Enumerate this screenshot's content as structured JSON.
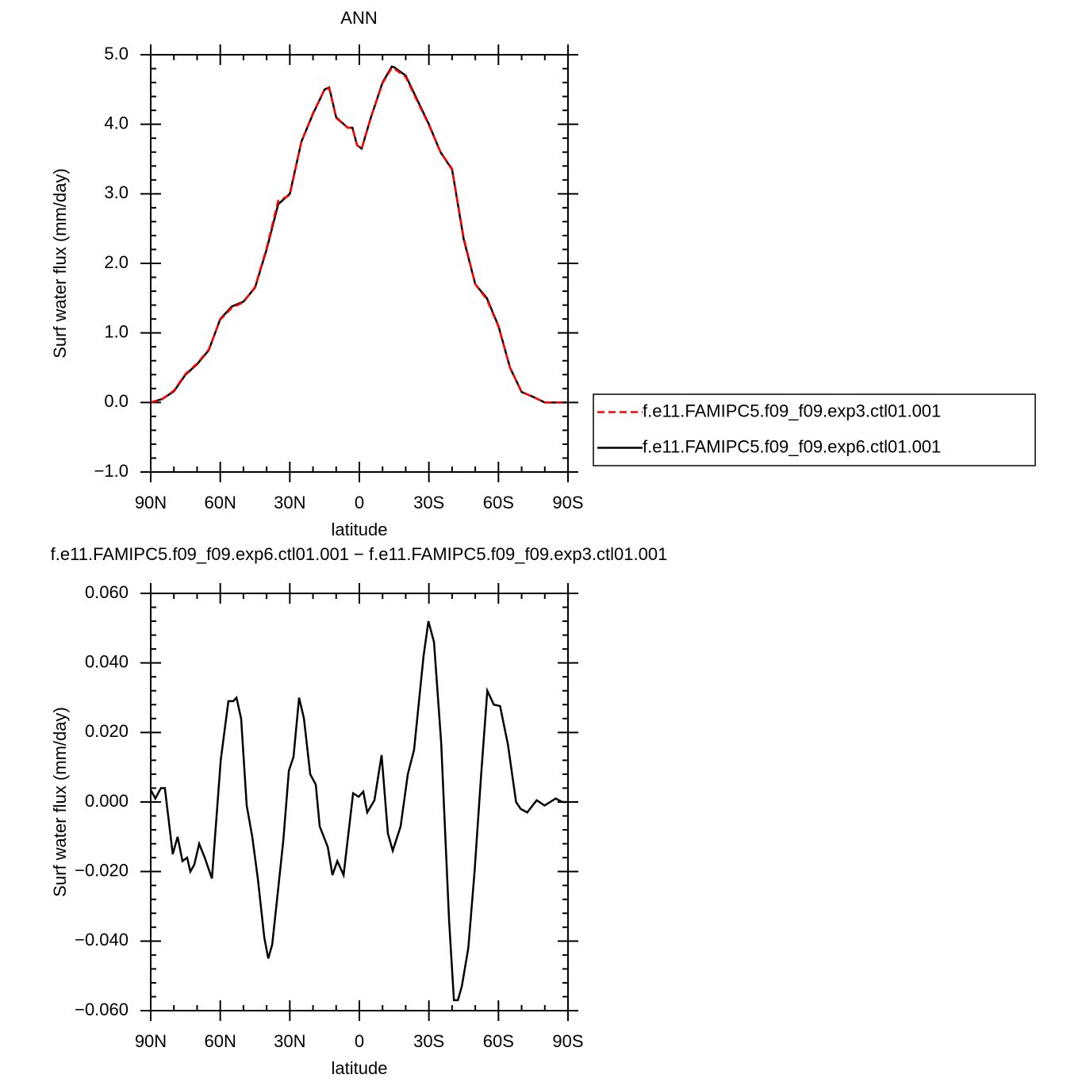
{
  "chart_data": [
    {
      "type": "line",
      "title": "ANN",
      "xlabel": "latitude",
      "ylabel": "Surf water flux (mm/day)",
      "xlim": [
        90,
        -90
      ],
      "ylim": [
        -1,
        5
      ],
      "xticks": [
        {
          "value": 90,
          "label": "90N"
        },
        {
          "value": 60,
          "label": "60N"
        },
        {
          "value": 30,
          "label": "30N"
        },
        0,
        {
          "value": -30,
          "label": "30S"
        },
        {
          "value": -60,
          "label": "60S"
        },
        {
          "value": -90,
          "label": "90S"
        }
      ],
      "yticks": [
        {
          "value": 5,
          "label": "5.0"
        },
        {
          "value": 4,
          "label": "4.0"
        },
        {
          "value": 3,
          "label": "3.0"
        },
        {
          "value": 2,
          "label": "2.0"
        },
        {
          "value": 1,
          "label": "1.0"
        },
        {
          "value": 0,
          "label": "0.0"
        },
        {
          "value": -1,
          "label": "−1.0"
        }
      ],
      "legend": "outside-right",
      "x": [
        90,
        85,
        80,
        75,
        70,
        65,
        60,
        55,
        50,
        45,
        40,
        35,
        30,
        25,
        20,
        15,
        13,
        10,
        5,
        3,
        1,
        -1,
        -5,
        -10,
        -14,
        -15,
        -20,
        -25,
        -30,
        -35,
        -40,
        -45,
        -50,
        -55,
        -60,
        -65,
        -70,
        -75,
        -80,
        -85,
        -90
      ],
      "series": [
        {
          "name": "f.e11.FAMIPC5.f09_f09.exp6.ctl01.001",
          "color": "#000000",
          "linestyle": "solid",
          "values": [
            0.0,
            0.05,
            0.16,
            0.4,
            0.55,
            0.75,
            1.2,
            1.38,
            1.45,
            1.65,
            2.2,
            2.85,
            3.0,
            3.75,
            4.15,
            4.5,
            4.53,
            4.1,
            3.95,
            3.95,
            3.7,
            3.65,
            4.1,
            4.6,
            4.83,
            4.82,
            4.7,
            4.35,
            4.0,
            3.6,
            3.35,
            2.35,
            1.7,
            1.5,
            1.1,
            0.5,
            0.15,
            0.08,
            0.0,
            0.0,
            0.0
          ]
        },
        {
          "name": "f.e11.FAMIPC5.f09_f09.exp3.ctl01.001",
          "color": "#ff0000",
          "linestyle": "dashed",
          "values": [
            0.0,
            0.05,
            0.17,
            0.41,
            0.56,
            0.76,
            1.19,
            1.36,
            1.44,
            1.66,
            2.22,
            2.9,
            2.98,
            3.75,
            4.16,
            4.5,
            4.52,
            4.09,
            3.95,
            3.95,
            3.7,
            3.65,
            4.1,
            4.59,
            4.81,
            4.8,
            4.68,
            4.33,
            3.99,
            3.6,
            3.36,
            2.37,
            1.7,
            1.48,
            1.09,
            0.5,
            0.15,
            0.08,
            0.0,
            0.0,
            0.0
          ]
        }
      ]
    },
    {
      "type": "line",
      "title": "f.e11.FAMIPC5.f09_f09.exp6.ctl01.001 − f.e11.FAMIPC5.f09_f09.exp3.ctl01.001",
      "xlabel": "latitude",
      "ylabel": "Surf water flux (mm/day)",
      "xlim": [
        90,
        -90
      ],
      "ylim": [
        -0.06,
        0.06
      ],
      "xticks": [
        {
          "value": 90,
          "label": "90N"
        },
        {
          "value": 60,
          "label": "60N"
        },
        {
          "value": 30,
          "label": "30N"
        },
        0,
        {
          "value": -30,
          "label": "30S"
        },
        {
          "value": -60,
          "label": "60S"
        },
        {
          "value": -90,
          "label": "90S"
        }
      ],
      "yticks": [
        {
          "value": 0.06,
          "label": "0.060"
        },
        {
          "value": 0.04,
          "label": "0.040"
        },
        {
          "value": 0.02,
          "label": "0.020"
        },
        {
          "value": 0,
          "label": "0.000"
        },
        {
          "value": -0.02,
          "label": "−0.020"
        },
        {
          "value": -0.04,
          "label": "−0.040"
        },
        {
          "value": -0.06,
          "label": "−0.060"
        }
      ],
      "x": [
        90,
        88,
        85.6,
        83.9,
        80.5,
        78.4,
        76.3,
        74.3,
        72.9,
        71.2,
        69.1,
        66.7,
        63.6,
        59.8,
        56.5,
        54.4,
        53,
        51,
        48.6,
        46.2,
        43.8,
        41,
        39.3,
        37.6,
        35.5,
        32.8,
        30.4,
        28.4,
        26,
        23.9,
        21.2,
        18.8,
        17.1,
        13.6,
        11.6,
        9.5,
        6.8,
        2.7,
        0.3,
        -1.7,
        -3.4,
        -6.5,
        -9.6,
        -12.3,
        -14.4,
        -17.8,
        -20.9,
        -23.6,
        -27.7,
        -29.8,
        -32.2,
        -35.3,
        -38.7,
        -40.8,
        -42.5,
        -44.2,
        -47,
        -49.7,
        -52.5,
        -55.2,
        -58,
        -60.7,
        -64.1,
        -67.6,
        -69.6,
        -72.4,
        -76.5,
        -79.9,
        -84.7,
        -87.5,
        -90
      ],
      "series": [
        {
          "name": "f.e11.FAMIPC5.f09_f09.exp6.ctl01.001 − f.e11.FAMIPC5.f09_f09.exp3.ctl01.001",
          "color": "#000000",
          "linestyle": "solid",
          "values": [
            0.0035,
            0.001,
            0.004,
            0.004,
            -0.015,
            -0.01,
            -0.017,
            -0.016,
            -0.02,
            -0.018,
            -0.012,
            -0.016,
            -0.022,
            0.012,
            0.029,
            0.029,
            0.03,
            0.024,
            -0.001,
            -0.01,
            -0.022,
            -0.039,
            -0.045,
            -0.041,
            -0.028,
            -0.011,
            0.009,
            0.013,
            0.03,
            0.024,
            0.008,
            0.005,
            -0.007,
            -0.013,
            -0.021,
            -0.017,
            -0.021,
            0.0025,
            0.0015,
            0.003,
            -0.003,
            0.0005,
            0.0135,
            -0.009,
            -0.014,
            -0.007,
            0.008,
            0.015,
            0.042,
            0.052,
            0.046,
            0.017,
            -0.034,
            -0.057,
            -0.057,
            -0.053,
            -0.042,
            -0.02,
            0.0075,
            0.032,
            0.028,
            0.0276,
            0.0165,
            0.0,
            -0.002,
            -0.003,
            0.0005,
            -0.001,
            0.001,
            0.0,
            0.0
          ]
        }
      ]
    }
  ]
}
